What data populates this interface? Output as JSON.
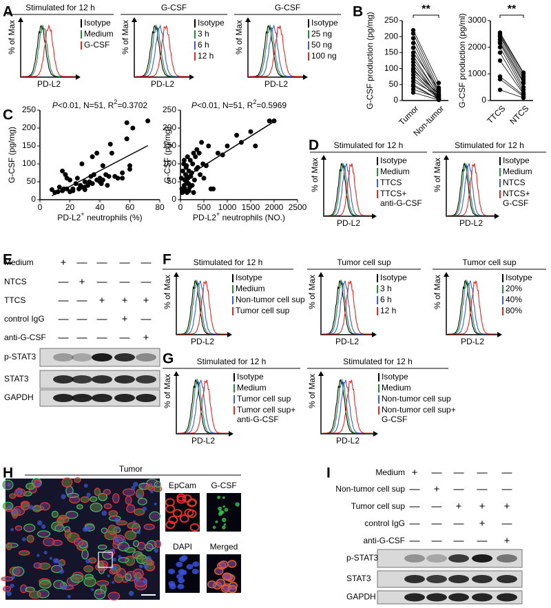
{
  "panels": {
    "A": {
      "letter": "A",
      "plots": [
        {
          "title": "Stimulated for 12 h",
          "ylabel": "% of Max",
          "xlabel": "PD-L2",
          "legend": [
            {
              "lines": [
                "Isotype"
              ],
              "color": "#000000"
            },
            {
              "lines": [
                "Medium"
              ],
              "color": "#1e8c3a"
            },
            {
              "lines": [
                "G-CSF"
              ],
              "color": "#e8261d"
            }
          ]
        },
        {
          "title": "G-CSF",
          "ylabel": "% of Max",
          "xlabel": "PD-L2",
          "legend": [
            {
              "lines": [
                "Isotype"
              ],
              "color": "#000000"
            },
            {
              "lines": [
                "3 h"
              ],
              "color": "#1e8c3a"
            },
            {
              "lines": [
                "6 h"
              ],
              "color": "#3b5bd6"
            },
            {
              "lines": [
                "12 h"
              ],
              "color": "#e8261d"
            }
          ]
        },
        {
          "title": "G-CSF",
          "ylabel": "% of Max",
          "xlabel": "PD-L2",
          "legend": [
            {
              "lines": [
                "Isotype"
              ],
              "color": "#000000"
            },
            {
              "lines": [
                "25 ng"
              ],
              "color": "#1e8c3a"
            },
            {
              "lines": [
                "50 ng"
              ],
              "color": "#3b5bd6"
            },
            {
              "lines": [
                "100 ng"
              ],
              "color": "#e8261d"
            }
          ]
        }
      ]
    },
    "B": {
      "letter": "B",
      "charts": [
        {
          "ylabel": "G-CSF production (pg/mg)",
          "significance": "**",
          "categories": [
            "Tumor",
            "Non-tumor"
          ],
          "ylim": [
            0,
            250
          ],
          "yticks": [
            0,
            50,
            100,
            150,
            200,
            250
          ],
          "groups": [
            [
              220,
              210,
              195,
              180,
              165,
              150,
              140,
              130,
              120,
              110,
              100,
              95,
              90,
              80,
              70,
              60,
              50,
              45,
              35,
              25
            ],
            [
              55,
              40,
              30,
              25,
              20,
              35,
              15,
              18,
              10,
              12,
              8,
              20,
              5,
              10,
              6,
              15,
              3,
              5,
              8,
              2
            ]
          ]
        },
        {
          "ylabel": "G-CSF production (pg/ml)",
          "significance": "**",
          "categories": [
            "TTCS",
            "NTCS"
          ],
          "ylim": [
            0,
            3000
          ],
          "yticks": [
            0,
            1000,
            2000,
            3000
          ],
          "groups": [
            [
              2550,
              2500,
              2450,
              2400,
              2300,
              2200,
              2150,
              2000,
              1800,
              1500,
              900,
              800,
              400
            ],
            [
              1050,
              1000,
              900,
              800,
              700,
              650,
              500,
              400,
              300,
              250,
              200,
              150,
              100
            ]
          ]
        }
      ]
    },
    "C": {
      "letter": "C",
      "charts": [
        {
          "type": "scatter",
          "annotation": {
            "p": "P",
            "rest": "<0.01, N=51, R",
            "sup": "2",
            "value": "=0.3702"
          },
          "ylabel": "G-CSF (pg/mg)",
          "xlabel": {
            "pre": "PD-L2",
            "sup": "+",
            "post": " neutrophils (%)"
          },
          "xlim": [
            0,
            80
          ],
          "xticks": [
            0,
            20,
            40,
            60,
            80
          ],
          "ylim": [
            0,
            250
          ],
          "yticks": [
            0,
            50,
            100,
            150,
            200,
            250
          ],
          "x": [
            8,
            10,
            12,
            13,
            15,
            15,
            17,
            18,
            20,
            22,
            24,
            25,
            26,
            28,
            30,
            30,
            32,
            35,
            35,
            36,
            38,
            38,
            40,
            40,
            42,
            44,
            45,
            46,
            48,
            50,
            52,
            55,
            58,
            58,
            60,
            60,
            62,
            72,
            18,
            27,
            33,
            42,
            47,
            22,
            30,
            55,
            20,
            34,
            28,
            41,
            16
          ],
          "y": [
            28,
            20,
            22,
            35,
            80,
            25,
            70,
            30,
            22,
            25,
            45,
            60,
            30,
            100,
            50,
            35,
            40,
            45,
            120,
            70,
            130,
            55,
            60,
            50,
            95,
            70,
            40,
            65,
            130,
            65,
            60,
            60,
            215,
            170,
            95,
            85,
            200,
            220,
            60,
            40,
            50,
            55,
            155,
            30,
            28,
            75,
            55,
            65,
            35,
            45,
            30
          ]
        },
        {
          "type": "scatter",
          "annotation": {
            "p": "P",
            "rest": "<0.01, N=51, R",
            "sup": "2",
            "value": "=0.5969"
          },
          "ylabel": "G-CSF (pg/mg)",
          "xlabel": {
            "pre": "PD-L2",
            "sup": "+",
            "post": " neutrophils (NO.)"
          },
          "xlim": [
            0,
            2500
          ],
          "xticks": [
            0,
            500,
            1000,
            1500,
            2000,
            2500
          ],
          "ylim": [
            0,
            250
          ],
          "yticks": [
            0,
            50,
            100,
            150,
            200,
            250
          ],
          "x": [
            20,
            30,
            40,
            50,
            60,
            70,
            80,
            90,
            100,
            110,
            120,
            130,
            140,
            150,
            160,
            170,
            180,
            200,
            210,
            220,
            240,
            250,
            260,
            280,
            300,
            320,
            340,
            350,
            370,
            400,
            420,
            450,
            480,
            500,
            550,
            600,
            650,
            700,
            800,
            900,
            1000,
            1200,
            1300,
            1500,
            1600,
            1900,
            2000,
            80,
            180,
            130,
            280
          ],
          "y": [
            60,
            30,
            20,
            80,
            25,
            100,
            40,
            55,
            30,
            70,
            90,
            50,
            20,
            120,
            60,
            45,
            80,
            35,
            110,
            65,
            75,
            40,
            100,
            130,
            55,
            120,
            85,
            140,
            90,
            130,
            70,
            160,
            100,
            60,
            95,
            150,
            30,
            30,
            130,
            125,
            150,
            180,
            160,
            190,
            150,
            220,
            220,
            110,
            25,
            95,
            20
          ]
        }
      ]
    },
    "D": {
      "letter": "D",
      "plots": [
        {
          "title": "Stimulated for 12 h",
          "ylabel": "% of Max",
          "xlabel": "PD-L2",
          "legend": [
            {
              "lines": [
                "Isotype"
              ],
              "color": "#000000"
            },
            {
              "lines": [
                "Medium"
              ],
              "color": "#1e8c3a"
            },
            {
              "lines": [
                "TTCS"
              ],
              "color": "#3b5bd6"
            },
            {
              "lines": [
                "TTCS+",
                "anti-G-CSF"
              ],
              "color": "#e8261d"
            }
          ]
        },
        {
          "title": "Stimulated for 12 h",
          "ylabel": "% of Max",
          "xlabel": "PD-L2",
          "legend": [
            {
              "lines": [
                "Isotype"
              ],
              "color": "#000000"
            },
            {
              "lines": [
                "Medium"
              ],
              "color": "#1e8c3a"
            },
            {
              "lines": [
                "NTCS"
              ],
              "color": "#3b5bd6"
            },
            {
              "lines": [
                "NTCS+",
                "G-CSF"
              ],
              "color": "#e8261d"
            }
          ]
        }
      ]
    },
    "E": {
      "letter": "E",
      "rows": [
        "Medium",
        "NTCS",
        "TTCS",
        "control IgG",
        "anti-G-CSF"
      ],
      "signs": [
        [
          "+",
          "—",
          "—",
          "—",
          "—"
        ],
        [
          "—",
          "+",
          "—",
          "—",
          "—"
        ],
        [
          "—",
          "—",
          "+",
          "+",
          "+"
        ],
        [
          "—",
          "—",
          "—",
          "+",
          "—"
        ],
        [
          "—",
          "—",
          "—",
          "—",
          "+"
        ]
      ],
      "blots": [
        "p-STAT3",
        "STAT3",
        "GAPDH"
      ]
    },
    "F": {
      "letter": "F",
      "plots": [
        {
          "title": "Stimulated for 12 h",
          "ylabel": "% of Max",
          "xlabel": "PD-L2",
          "legend": [
            {
              "lines": [
                "Isotype"
              ],
              "color": "#000000"
            },
            {
              "lines": [
                "Medium"
              ],
              "color": "#1e8c3a"
            },
            {
              "lines": [
                "Non-tumor cell sup"
              ],
              "color": "#3b5bd6"
            },
            {
              "lines": [
                "Tumor cell sup"
              ],
              "color": "#e8261d"
            }
          ]
        },
        {
          "title": "Tumor cell sup",
          "ylabel": "% of Max",
          "xlabel": "PD-L2",
          "legend": [
            {
              "lines": [
                "Isotype"
              ],
              "color": "#000000"
            },
            {
              "lines": [
                "3 h"
              ],
              "color": "#1e8c3a"
            },
            {
              "lines": [
                "6 h"
              ],
              "color": "#3b5bd6"
            },
            {
              "lines": [
                "12 h"
              ],
              "color": "#e8261d"
            }
          ]
        },
        {
          "title": "Tumor cell sup",
          "ylabel": "% of Max",
          "xlabel": "PD-L2",
          "legend": [
            {
              "lines": [
                "Isotype"
              ],
              "color": "#000000"
            },
            {
              "lines": [
                "20%"
              ],
              "color": "#1e8c3a"
            },
            {
              "lines": [
                "40%"
              ],
              "color": "#3b5bd6"
            },
            {
              "lines": [
                "80%"
              ],
              "color": "#e8261d"
            }
          ]
        }
      ]
    },
    "G": {
      "letter": "G",
      "plots": [
        {
          "title": "Stimulated for 12 h",
          "ylabel": "% of Max",
          "xlabel": "PD-L2",
          "legend": [
            {
              "lines": [
                "Isotype"
              ],
              "color": "#000000"
            },
            {
              "lines": [
                "Medium"
              ],
              "color": "#1e8c3a"
            },
            {
              "lines": [
                "Tumor cell sup"
              ],
              "color": "#3b5bd6"
            },
            {
              "lines": [
                "Tumor cell sup+",
                "anti-G-CSF"
              ],
              "color": "#e8261d"
            }
          ]
        },
        {
          "title": "Stimulated for 12 h",
          "ylabel": "% of Max",
          "xlabel": "PD-L2",
          "legend": [
            {
              "lines": [
                "Isotype"
              ],
              "color": "#000000"
            },
            {
              "lines": [
                "Medium"
              ],
              "color": "#1e8c3a"
            },
            {
              "lines": [
                "Non-tumor cell sup"
              ],
              "color": "#3b5bd6"
            },
            {
              "lines": [
                "Non-tumor cell sup+",
                "G-CSF"
              ],
              "color": "#e8261d"
            }
          ]
        }
      ]
    },
    "H": {
      "letter": "H",
      "title": "Tumor",
      "insets": [
        "EpCam",
        "G-CSF",
        "DAPI",
        "Merged"
      ]
    },
    "I": {
      "letter": "I",
      "rows": [
        "Medium",
        "Non-tumor cell sup",
        "Tumor cell sup",
        "control IgG",
        "anti-G-CSF"
      ],
      "signs": [
        [
          "+",
          "—",
          "—",
          "—",
          "—"
        ],
        [
          "—",
          "+",
          "—",
          "—",
          "—"
        ],
        [
          "—",
          "—",
          "+",
          "+",
          "+"
        ],
        [
          "—",
          "—",
          "—",
          "+",
          "—"
        ],
        [
          "—",
          "—",
          "—",
          "—",
          "+"
        ]
      ],
      "blots": [
        "p-STAT3",
        "STAT3",
        "GAPDH"
      ]
    }
  }
}
